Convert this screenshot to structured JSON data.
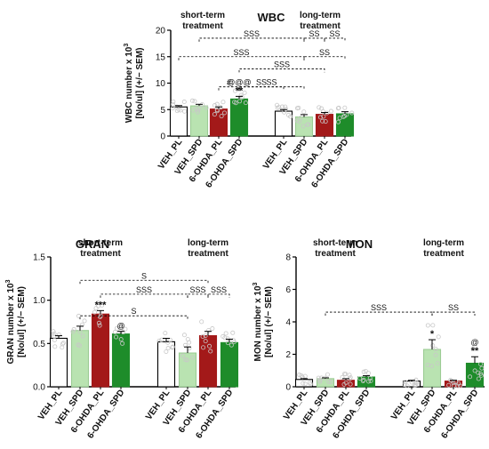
{
  "colors": {
    "VEH_PL": "#ffffff",
    "VEH_SPD": "#b9e3b1",
    "6-OHDA_PL": "#a31919",
    "6-OHDA_SPD": "#1e8c2a",
    "axis": "#000000",
    "dot": "#c8c8c8"
  },
  "chart_data": [
    {
      "id": "wbc",
      "type": "bar",
      "title": "WBC",
      "ylabel_line1": "WBC number x 10",
      "ylabel_sup": "3",
      "ylabel_line2": "[No/ul] (+/− SEM)",
      "ylim": [
        0,
        20
      ],
      "yticks": [
        0,
        5,
        10,
        15,
        20
      ],
      "group_labels": [
        [
          "short-term",
          "treatment"
        ],
        [
          "long-term",
          "treatment"
        ]
      ],
      "categories": [
        "VEH_PL",
        "VEH_SPD",
        "6-OHDA_PL",
        "6-OHDA_SPD",
        "VEH_PL",
        "VEH_SPD",
        "6-OHDA_PL",
        "6-OHDA_SPD"
      ],
      "values": [
        5.5,
        5.7,
        5.1,
        7.0,
        4.7,
        3.6,
        4.1,
        4.2
      ],
      "errors": [
        0.25,
        0.3,
        0.4,
        0.5,
        0.3,
        0.45,
        0.35,
        0.4
      ],
      "significance": [
        "",
        "",
        "",
        "**",
        "",
        "",
        "",
        ""
      ],
      "above": [
        "",
        "",
        "",
        "@@@",
        "",
        "",
        "",
        ""
      ],
      "brackets": [
        {
          "from": 1,
          "to": 5,
          "y": 18.5,
          "label": "SSS"
        },
        {
          "from": 5,
          "to": 6,
          "y": 18.5,
          "label": "SS"
        },
        {
          "from": 6,
          "to": 7,
          "y": 18.5,
          "label": "SS"
        },
        {
          "from": 0,
          "to": 5,
          "y": 15.0,
          "label": "SSS"
        },
        {
          "from": 5,
          "to": 7,
          "y": 15.0,
          "label": "SS"
        },
        {
          "from": 3,
          "to": 6,
          "y": 12.7,
          "label": "SSS"
        },
        {
          "from": 2,
          "to": 3,
          "y": 9.3,
          "label": "#"
        },
        {
          "from": 3,
          "to": 5,
          "y": 9.3,
          "label": "SS"
        },
        {
          "from": 3,
          "to": 4,
          "y": 9.3,
          "label": "SS"
        }
      ]
    },
    {
      "id": "gran",
      "type": "bar",
      "title": "GRAN",
      "ylabel_line1": "GRAN number x 10",
      "ylabel_sup": "3",
      "ylabel_line2": "[No/ul] (+/− SEM)",
      "ylim": [
        0,
        1.5
      ],
      "yticks": [
        0.0,
        0.5,
        1.0,
        1.5
      ],
      "ytick_decimals": 1,
      "group_labels": [
        [
          "short-term",
          "treatment"
        ],
        [
          "long-term",
          "treatment"
        ]
      ],
      "categories": [
        "VEH_PL",
        "VEH_SPD",
        "6-OHDA_PL",
        "6-OHDA_SPD",
        "VEH_PL",
        "VEH_SPD",
        "6-OHDA_PL",
        "6-OHDA_SPD"
      ],
      "values": [
        0.56,
        0.65,
        0.84,
        0.61,
        0.52,
        0.39,
        0.59,
        0.51
      ],
      "errors": [
        0.03,
        0.05,
        0.04,
        0.03,
        0.04,
        0.07,
        0.05,
        0.04
      ],
      "significance": [
        "",
        "",
        "***",
        "",
        "",
        "",
        "",
        ""
      ],
      "above": [
        "",
        "",
        "",
        "@",
        "",
        "",
        "",
        ""
      ],
      "brackets": [
        {
          "from": 1,
          "to": 6,
          "y": 1.23,
          "label": "S"
        },
        {
          "from": 2,
          "to": 5,
          "y": 1.07,
          "label": "SSS"
        },
        {
          "from": 5,
          "to": 6,
          "y": 1.07,
          "label": "SSS"
        },
        {
          "from": 6,
          "to": 7,
          "y": 1.07,
          "label": "SSS"
        },
        {
          "from": 1,
          "to": 5,
          "y": 0.82,
          "label": "S"
        }
      ]
    },
    {
      "id": "mon",
      "type": "bar",
      "title": "MON",
      "ylabel_line1": "MON number x 10",
      "ylabel_sup": "3",
      "ylabel_line2": "[No/ul] (+/− SEM)",
      "ylim": [
        0,
        8
      ],
      "yticks": [
        0,
        2,
        4,
        6,
        8
      ],
      "group_labels": [
        [
          "short-term",
          "treatment"
        ],
        [
          "long-term",
          "treatment"
        ]
      ],
      "categories": [
        "VEH_PL",
        "VEH_SPD",
        "6-OHDA_PL",
        "6-OHDA_SPD",
        "VEH_PL",
        "VEH_SPD",
        "6-OHDA_PL",
        "6-OHDA_SPD"
      ],
      "values": [
        0.45,
        0.5,
        0.4,
        0.6,
        0.35,
        2.3,
        0.35,
        1.45
      ],
      "errors": [
        0.05,
        0.05,
        0.1,
        0.08,
        0.05,
        0.6,
        0.05,
        0.4
      ],
      "significance": [
        "",
        "",
        "",
        "",
        "",
        "*",
        "",
        "**"
      ],
      "above": [
        "",
        "",
        "",
        "",
        "",
        "",
        "",
        "@"
      ],
      "brackets": [
        {
          "from": 1,
          "to": 5,
          "y": 4.6,
          "label": "SSS"
        },
        {
          "from": 5,
          "to": 7,
          "y": 4.6,
          "label": "SS"
        }
      ]
    }
  ]
}
